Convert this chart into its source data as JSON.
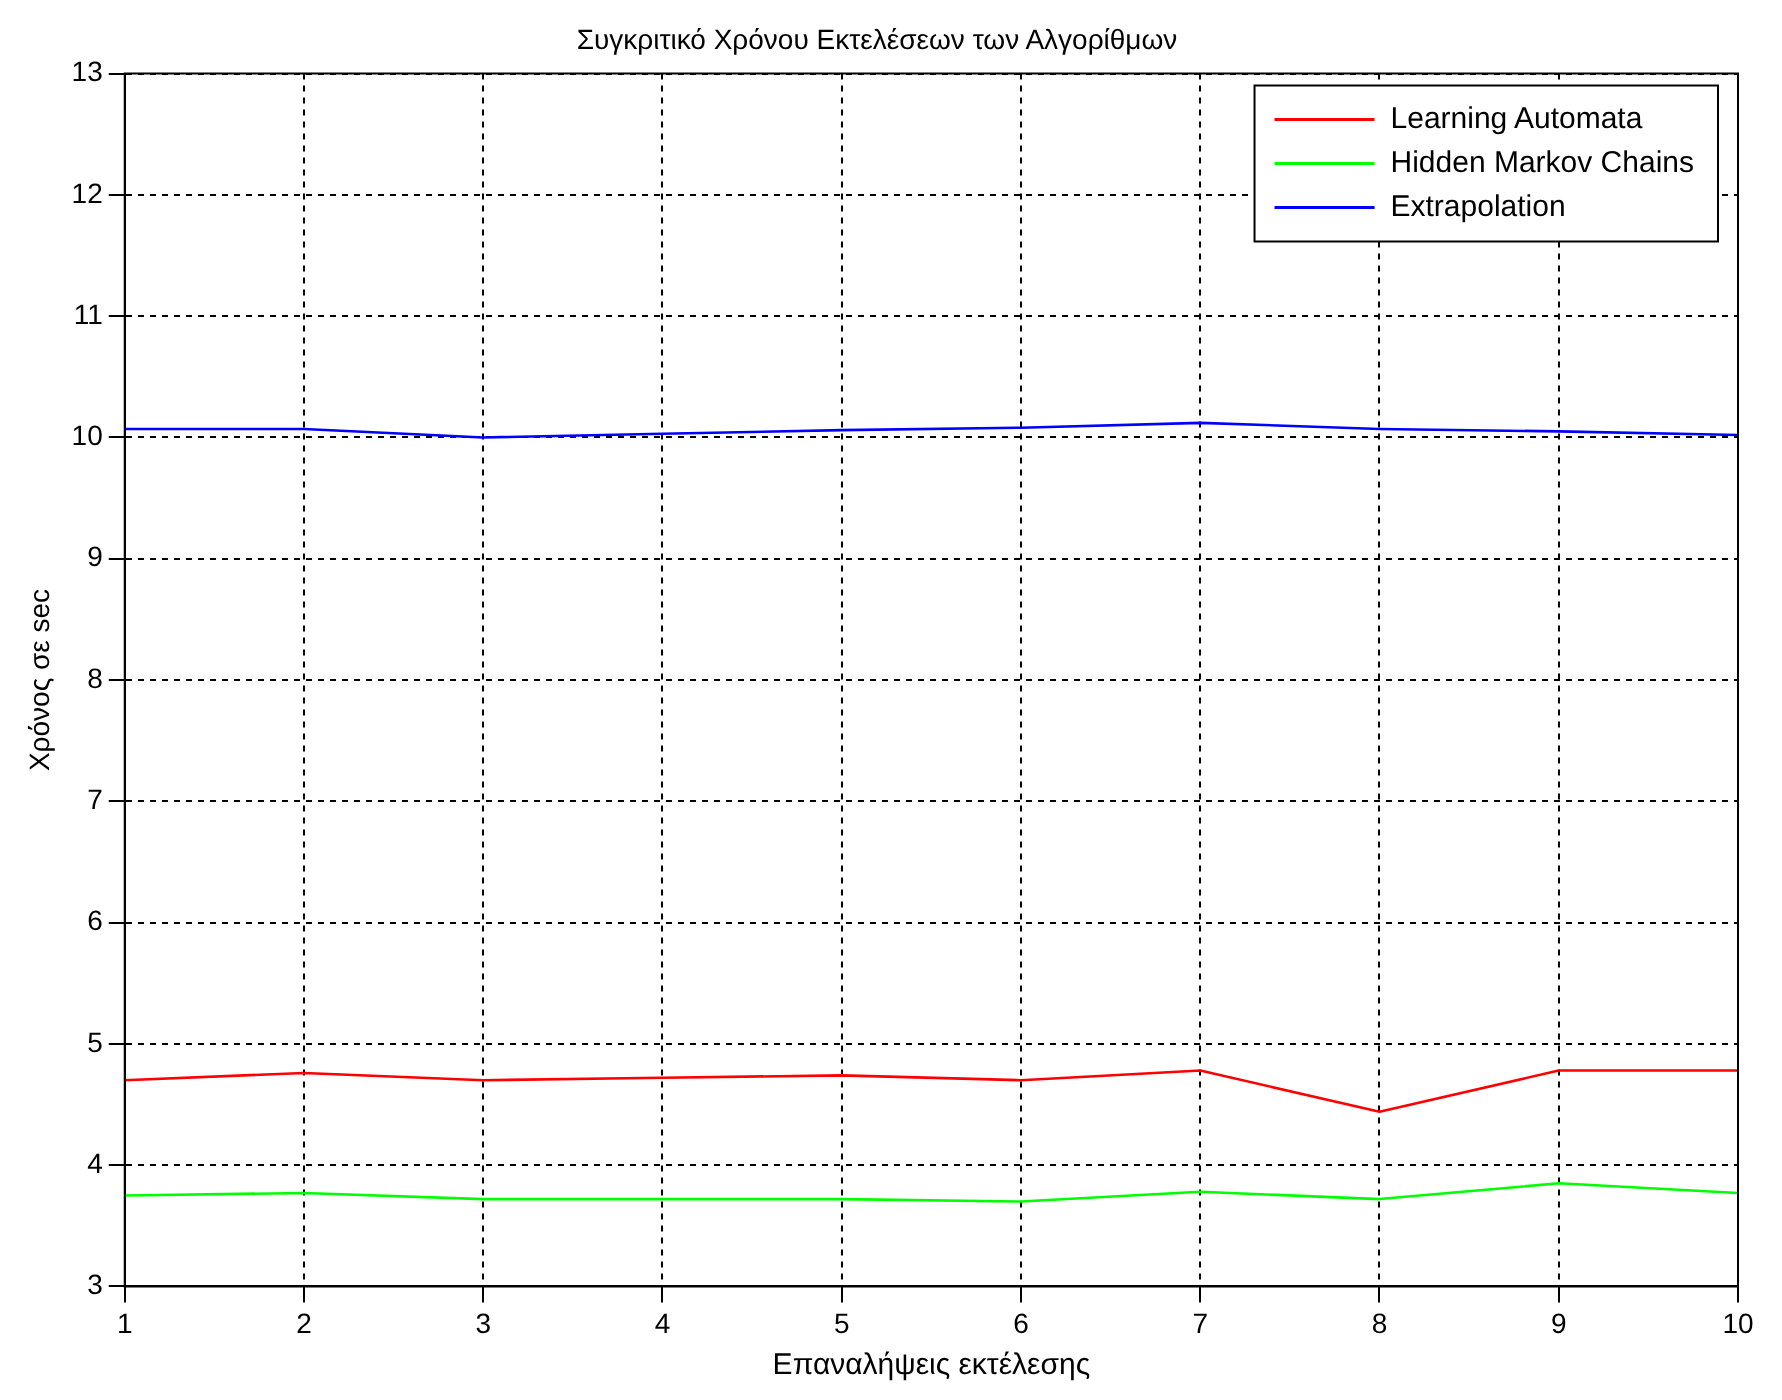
{
  "chart_data": {
    "type": "line",
    "title": "Συγκριτικό Χρόνου Εκτελέσεων των Αλγορίθμων",
    "xlabel": "Επαναλήψεις εκτέλεσης",
    "ylabel": "Χρόνος σε sec",
    "x": [
      1,
      2,
      3,
      4,
      5,
      6,
      7,
      8,
      9,
      10
    ],
    "series": [
      {
        "name": "Learning Automata",
        "color": "#ff0000",
        "values": [
          4.7,
          4.76,
          4.7,
          4.72,
          4.74,
          4.7,
          4.78,
          4.44,
          4.78,
          4.78
        ]
      },
      {
        "name": "Hidden Markov Chains",
        "color": "#00ff00",
        "values": [
          3.75,
          3.77,
          3.72,
          3.72,
          3.72,
          3.7,
          3.78,
          3.72,
          3.85,
          3.77
        ]
      },
      {
        "name": "Extrapolation",
        "color": "#0000ff",
        "values": [
          10.07,
          10.07,
          10.0,
          10.03,
          10.06,
          10.08,
          10.12,
          10.07,
          10.05,
          10.02
        ]
      }
    ],
    "xlim": [
      1,
      10
    ],
    "xticks": [
      1,
      2,
      3,
      4,
      5,
      6,
      7,
      8,
      9,
      10
    ],
    "ylim": [
      3,
      13
    ],
    "yticks": [
      3,
      4,
      5,
      6,
      7,
      8,
      9,
      10,
      11,
      12,
      13
    ],
    "grid": true,
    "legend": "top right",
    "line_style": "solid",
    "marker": "none"
  }
}
